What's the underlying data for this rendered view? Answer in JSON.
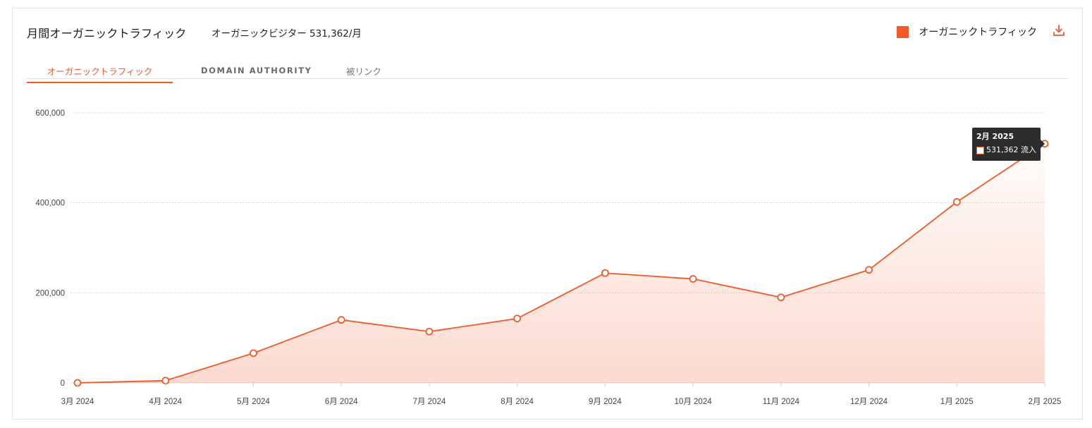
{
  "header": {
    "title": "月間オーガニックトラフィック",
    "visitors_label": "オーガニックビジター 531,362/月",
    "legend_label": "オーガニックトラフィック",
    "download_icon": "download-icon"
  },
  "tabs": [
    {
      "label": "オーガニックトラフィック",
      "active": true
    },
    {
      "label": "DOMAIN AUTHORITY",
      "active": false
    },
    {
      "label": "被リンク",
      "active": false
    }
  ],
  "tooltip": {
    "title": "2月 2025",
    "value_text": "531,362 流入"
  },
  "colors": {
    "accent": "#f05a28",
    "grid": "#dcdcdc",
    "axis_text": "#444444"
  },
  "chart_data": {
    "type": "area",
    "categories": [
      "3月 2024",
      "4月 2024",
      "5月 2024",
      "6月 2024",
      "7月 2024",
      "8月 2024",
      "9月 2024",
      "10月 2024",
      "11月 2024",
      "12月 2024",
      "1月 2025",
      "2月 2025"
    ],
    "series": [
      {
        "name": "オーガニックトラフィック",
        "values": [
          0,
          5000,
          66000,
          140000,
          114000,
          143000,
          244000,
          231000,
          190000,
          251000,
          402000,
          531362
        ]
      }
    ],
    "ylim": [
      0,
      600000
    ],
    "yticks": [
      0,
      200000,
      400000,
      600000
    ],
    "ytick_labels": [
      "0",
      "200,000",
      "400,000",
      "600,000"
    ],
    "grid": true,
    "legend_position": "top-right"
  }
}
